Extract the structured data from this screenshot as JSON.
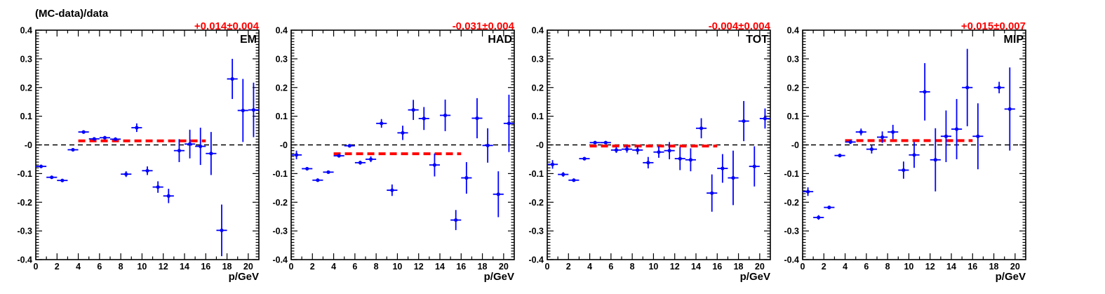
{
  "y_axis_title": "(MC-data)/data",
  "x_axis_title": "p/GeV",
  "colors": {
    "points": "#0000ff",
    "fit": "#ff0000",
    "zero_line": "#000000"
  },
  "chart_data": [
    {
      "type": "scatter",
      "label": "EM",
      "fit_label": "+0.014±0.004",
      "fit": {
        "value": 0.014,
        "x_range": [
          4,
          16
        ]
      },
      "xlim": [
        0,
        21
      ],
      "ylim": [
        -0.4,
        0.4
      ],
      "x_ticks": [
        "0",
        "2",
        "4",
        "6",
        "8",
        "10",
        "12",
        "14",
        "16",
        "18",
        "20"
      ],
      "y_ticks": [
        "-0.4",
        "-0.3",
        "-0.2",
        "-0.1",
        "-0",
        "0.1",
        "0.2",
        "0.3",
        "0.4"
      ],
      "points": [
        {
          "x": 0.5,
          "y": -0.075,
          "err": 0.005
        },
        {
          "x": 1.5,
          "y": -0.113,
          "err": 0.005
        },
        {
          "x": 2.5,
          "y": -0.124,
          "err": 0.005
        },
        {
          "x": 3.5,
          "y": -0.017,
          "err": 0.005
        },
        {
          "x": 4.5,
          "y": 0.045,
          "err": 0.005
        },
        {
          "x": 5.5,
          "y": 0.021,
          "err": 0.005
        },
        {
          "x": 6.5,
          "y": 0.025,
          "err": 0.005
        },
        {
          "x": 7.5,
          "y": 0.02,
          "err": 0.006
        },
        {
          "x": 8.5,
          "y": -0.102,
          "err": 0.01
        },
        {
          "x": 9.5,
          "y": 0.06,
          "err": 0.015
        },
        {
          "x": 10.5,
          "y": -0.09,
          "err": 0.015
        },
        {
          "x": 11.5,
          "y": -0.147,
          "err": 0.02
        },
        {
          "x": 12.5,
          "y": -0.178,
          "err": 0.025
        },
        {
          "x": 13.5,
          "y": -0.02,
          "err": 0.04
        },
        {
          "x": 14.5,
          "y": 0.003,
          "err": 0.05
        },
        {
          "x": 15.5,
          "y": -0.005,
          "err": 0.065
        },
        {
          "x": 16.5,
          "y": -0.03,
          "err": 0.075
        },
        {
          "x": 17.5,
          "y": -0.298,
          "err": 0.09
        },
        {
          "x": 18.5,
          "y": 0.23,
          "err": 0.07
        },
        {
          "x": 19.5,
          "y": 0.12,
          "err": 0.11
        },
        {
          "x": 20.5,
          "y": 0.122,
          "err": 0.095
        }
      ]
    },
    {
      "type": "scatter",
      "label": "HAD",
      "fit_label": "-0.031±0.004",
      "fit": {
        "value": -0.031,
        "x_range": [
          4,
          16
        ]
      },
      "xlim": [
        0,
        21
      ],
      "ylim": [
        -0.4,
        0.4
      ],
      "x_ticks": [
        "0",
        "2",
        "4",
        "6",
        "8",
        "10",
        "12",
        "14",
        "16",
        "18",
        "20"
      ],
      "y_ticks": [
        "-0.4",
        "-0.3",
        "-0.2",
        "-0.1",
        "-0",
        "0.1",
        "0.2",
        "0.3",
        "0.4"
      ],
      "points": [
        {
          "x": 0.5,
          "y": -0.035,
          "err": 0.015
        },
        {
          "x": 1.5,
          "y": -0.083,
          "err": 0.005
        },
        {
          "x": 2.5,
          "y": -0.123,
          "err": 0.005
        },
        {
          "x": 3.5,
          "y": -0.095,
          "err": 0.005
        },
        {
          "x": 4.5,
          "y": -0.038,
          "err": 0.005
        },
        {
          "x": 5.5,
          "y": -0.003,
          "err": 0.005
        },
        {
          "x": 6.5,
          "y": -0.062,
          "err": 0.007
        },
        {
          "x": 7.5,
          "y": -0.05,
          "err": 0.01
        },
        {
          "x": 8.5,
          "y": 0.075,
          "err": 0.015
        },
        {
          "x": 9.5,
          "y": -0.158,
          "err": 0.02
        },
        {
          "x": 10.5,
          "y": 0.042,
          "err": 0.025
        },
        {
          "x": 11.5,
          "y": 0.122,
          "err": 0.035
        },
        {
          "x": 12.5,
          "y": 0.092,
          "err": 0.04
        },
        {
          "x": 13.5,
          "y": -0.07,
          "err": 0.04
        },
        {
          "x": 14.5,
          "y": 0.103,
          "err": 0.055
        },
        {
          "x": 15.5,
          "y": -0.262,
          "err": 0.035
        },
        {
          "x": 16.5,
          "y": -0.115,
          "err": 0.055
        },
        {
          "x": 17.5,
          "y": 0.093,
          "err": 0.07
        },
        {
          "x": 18.5,
          "y": -0.002,
          "err": 0.06
        },
        {
          "x": 19.5,
          "y": -0.172,
          "err": 0.08
        },
        {
          "x": 20.5,
          "y": 0.075,
          "err": 0.1
        }
      ]
    },
    {
      "type": "scatter",
      "label": "TOT",
      "fit_label": "-0.004±0.004",
      "fit": {
        "value": -0.004,
        "x_range": [
          4,
          16
        ]
      },
      "xlim": [
        0,
        21
      ],
      "ylim": [
        -0.4,
        0.4
      ],
      "x_ticks": [
        "0",
        "2",
        "4",
        "6",
        "8",
        "10",
        "12",
        "14",
        "16",
        "18",
        "20"
      ],
      "y_ticks": [
        "-0.4",
        "-0.3",
        "-0.2",
        "-0.1",
        "-0",
        "0.1",
        "0.2",
        "0.3",
        "0.4"
      ],
      "points": [
        {
          "x": 0.5,
          "y": -0.068,
          "err": 0.015
        },
        {
          "x": 1.5,
          "y": -0.103,
          "err": 0.008
        },
        {
          "x": 2.5,
          "y": -0.123,
          "err": 0.005
        },
        {
          "x": 3.5,
          "y": -0.048,
          "err": 0.005
        },
        {
          "x": 4.5,
          "y": 0.008,
          "err": 0.005
        },
        {
          "x": 5.5,
          "y": 0.008,
          "err": 0.005
        },
        {
          "x": 6.5,
          "y": -0.018,
          "err": 0.01
        },
        {
          "x": 7.5,
          "y": -0.015,
          "err": 0.012
        },
        {
          "x": 8.5,
          "y": -0.018,
          "err": 0.015
        },
        {
          "x": 9.5,
          "y": -0.062,
          "err": 0.02
        },
        {
          "x": 10.5,
          "y": -0.025,
          "err": 0.02
        },
        {
          "x": 11.5,
          "y": -0.02,
          "err": 0.03
        },
        {
          "x": 12.5,
          "y": -0.048,
          "err": 0.04
        },
        {
          "x": 13.5,
          "y": -0.052,
          "err": 0.04
        },
        {
          "x": 14.5,
          "y": 0.058,
          "err": 0.035
        },
        {
          "x": 15.5,
          "y": -0.168,
          "err": 0.065
        },
        {
          "x": 16.5,
          "y": -0.082,
          "err": 0.05
        },
        {
          "x": 17.5,
          "y": -0.115,
          "err": 0.095
        },
        {
          "x": 18.5,
          "y": 0.083,
          "err": 0.07
        },
        {
          "x": 19.5,
          "y": -0.075,
          "err": 0.07
        },
        {
          "x": 20.5,
          "y": 0.092,
          "err": 0.035
        }
      ]
    },
    {
      "type": "scatter",
      "label": "MIP",
      "fit_label": "+0.015±0.007",
      "fit": {
        "value": 0.015,
        "x_range": [
          4,
          16
        ]
      },
      "xlim": [
        0,
        21
      ],
      "ylim": [
        -0.4,
        0.4
      ],
      "x_ticks": [
        "0",
        "2",
        "4",
        "6",
        "8",
        "10",
        "12",
        "14",
        "16",
        "18",
        "20"
      ],
      "y_ticks": [
        "-0.4",
        "-0.3",
        "-0.2",
        "-0.1",
        "-0",
        "0.1",
        "0.2",
        "0.3",
        "0.4"
      ],
      "points": [
        {
          "x": 0.5,
          "y": -0.163,
          "err": 0.015
        },
        {
          "x": 1.5,
          "y": -0.253,
          "err": 0.008
        },
        {
          "x": 2.5,
          "y": -0.218,
          "err": 0.006
        },
        {
          "x": 3.5,
          "y": -0.037,
          "err": 0.006
        },
        {
          "x": 4.5,
          "y": 0.01,
          "err": 0.007
        },
        {
          "x": 5.5,
          "y": 0.045,
          "err": 0.012
        },
        {
          "x": 6.5,
          "y": -0.015,
          "err": 0.015
        },
        {
          "x": 7.5,
          "y": 0.027,
          "err": 0.02
        },
        {
          "x": 8.5,
          "y": 0.045,
          "err": 0.025
        },
        {
          "x": 9.5,
          "y": -0.088,
          "err": 0.03
        },
        {
          "x": 10.5,
          "y": -0.035,
          "err": 0.045
        },
        {
          "x": 11.5,
          "y": 0.185,
          "err": 0.1
        },
        {
          "x": 12.5,
          "y": -0.052,
          "err": 0.11
        },
        {
          "x": 13.5,
          "y": 0.03,
          "err": 0.09
        },
        {
          "x": 14.5,
          "y": 0.055,
          "err": 0.105
        },
        {
          "x": 15.5,
          "y": 0.2,
          "err": 0.135
        },
        {
          "x": 16.5,
          "y": 0.03,
          "err": 0.115
        },
        {
          "x": 18.5,
          "y": 0.2,
          "err": 0.02
        },
        {
          "x": 19.5,
          "y": 0.125,
          "err": 0.145
        }
      ]
    }
  ]
}
